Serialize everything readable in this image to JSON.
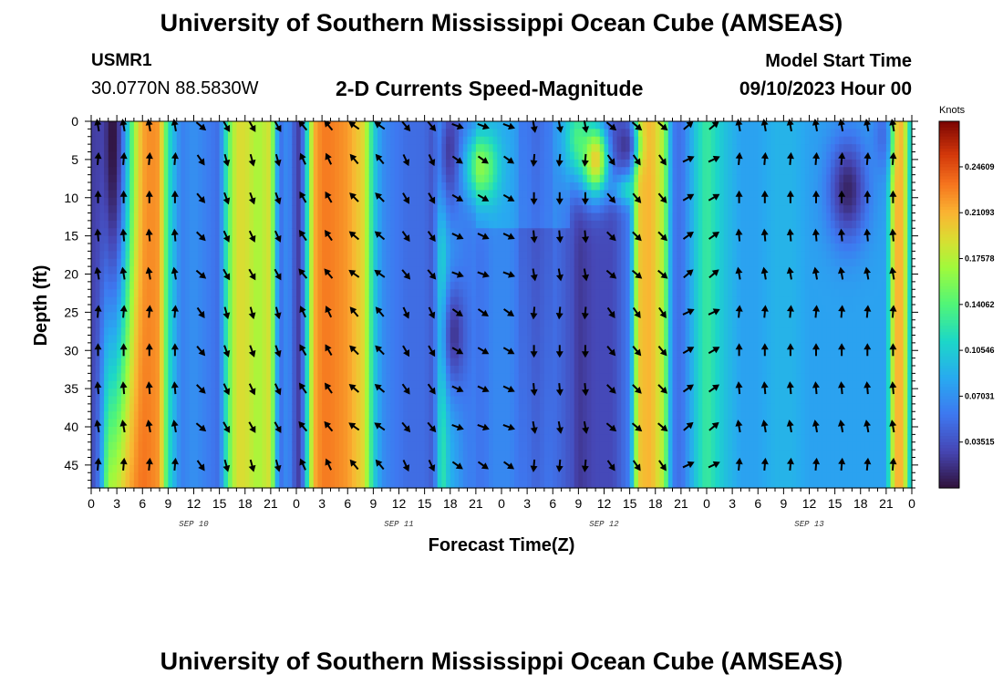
{
  "page": {
    "title": "University of Southern Mississippi Ocean Cube (AMSEAS)",
    "title_repeat": "University of Southern Mississippi Ocean Cube (AMSEAS)",
    "station_id": "USMR1",
    "station_coords": "30.0770N  88.5830W",
    "subtitle": "2-D Currents Speed-Magnitude",
    "model_start_label": "Model Start Time",
    "model_start_value": "09/10/2023 Hour 00"
  },
  "chart_data": {
    "type": "heatmap",
    "title": "2-D Currents Speed-Magnitude",
    "xlabel": "Forecast Time(Z)",
    "ylabel": "Depth (ft)",
    "x_ticks": [
      "0",
      "3",
      "6",
      "9",
      "12",
      "15",
      "18",
      "21",
      "0",
      "3",
      "6",
      "9",
      "12",
      "15",
      "18",
      "21",
      "0",
      "3",
      "6",
      "9",
      "12",
      "15",
      "18",
      "21",
      "0",
      "3",
      "6",
      "9",
      "12",
      "15",
      "18",
      "21",
      "0"
    ],
    "day_labels": [
      "SEP 10",
      "SEP 11",
      "SEP 12",
      "SEP 13"
    ],
    "xlim_hours": [
      0,
      96
    ],
    "y_ticks": [
      "0",
      "5",
      "10",
      "15",
      "20",
      "25",
      "30",
      "35",
      "40",
      "45"
    ],
    "ylim_ft": [
      0,
      48
    ],
    "colorbar": {
      "unit": "Knots",
      "ticks": [
        "0.24609",
        "0.21093",
        "0.17578",
        "0.14062",
        "0.10546",
        "0.07031",
        "0.03515"
      ],
      "range": [
        0,
        0.281
      ]
    },
    "speed_profile_hours": [
      0,
      1,
      2,
      4,
      6,
      8,
      9,
      10.5,
      12,
      13.5,
      15,
      16,
      17,
      18,
      19.5,
      21,
      22,
      23,
      24,
      24.5,
      26,
      27,
      28,
      30,
      32,
      33,
      34,
      35,
      37,
      39,
      40,
      41,
      42,
      44,
      46,
      47,
      48,
      49,
      50,
      51,
      52,
      53.5,
      55,
      56,
      57,
      59,
      61,
      63,
      64,
      65,
      65.5,
      67,
      68,
      69,
      70,
      71,
      72,
      74,
      76,
      78,
      80,
      82,
      84,
      86,
      88,
      90,
      92,
      93,
      94,
      95,
      96
    ],
    "speed_profile_knots": [
      0.03,
      0.07,
      0.22,
      0.24,
      0.24,
      0.22,
      0.12,
      0.06,
      0.07,
      0.06,
      0.05,
      0.14,
      0.19,
      0.19,
      0.17,
      0.19,
      0.05,
      0.07,
      0.03,
      0.02,
      0.21,
      0.23,
      0.23,
      0.22,
      0.19,
      0.11,
      0.07,
      0.06,
      0.05,
      0.05,
      0.04,
      0.13,
      0.09,
      0.06,
      0.06,
      0.07,
      0.07,
      0.07,
      0.06,
      0.06,
      0.05,
      0.06,
      0.05,
      0.04,
      0.02,
      0.03,
      0.03,
      0.06,
      0.2,
      0.21,
      0.21,
      0.17,
      0.06,
      0.05,
      0.08,
      0.11,
      0.13,
      0.1,
      0.08,
      0.08,
      0.09,
      0.09,
      0.08,
      0.08,
      0.08,
      0.08,
      0.08,
      0.08,
      0.21,
      0.21,
      0.08
    ],
    "anomalies": [
      {
        "center_hours": 2.5,
        "center_ft": 2,
        "hours_radius": 3,
        "ft_radius": 48,
        "knots": 0.0,
        "kind": "min"
      },
      {
        "center_hours": 42,
        "center_ft": 4,
        "hours_radius": 2.2,
        "ft_radius": 12,
        "knots": 0.02,
        "kind": "min"
      },
      {
        "center_hours": 42.5,
        "center_ft": 28,
        "hours_radius": 1.8,
        "ft_radius": 10,
        "knots": 0.02,
        "kind": "min"
      },
      {
        "center_hours": 45.5,
        "center_ft": 6,
        "hours_radius": 2.5,
        "ft_radius": 6,
        "knots": 0.09,
        "kind": "add"
      },
      {
        "center_hours": 56.8,
        "center_ft": 2,
        "hours_radius": 2.2,
        "ft_radius": 8,
        "knots": 0.13,
        "kind": "max"
      },
      {
        "center_hours": 59.0,
        "center_ft": 5,
        "hours_radius": 2,
        "ft_radius": 6,
        "knots": 0.2,
        "kind": "max"
      },
      {
        "center_hours": 62.5,
        "center_ft": 3,
        "hours_radius": 1.8,
        "ft_radius": 4,
        "knots": 0.02,
        "kind": "min"
      },
      {
        "center_hours": 65.0,
        "center_ft": 2,
        "hours_radius": 1.5,
        "ft_radius": 8,
        "knots": 0.12,
        "kind": "max"
      },
      {
        "center_hours": 63.5,
        "center_ft": 9,
        "hours_radius": 3,
        "ft_radius": 2.5,
        "knots": 0.12,
        "kind": "max"
      },
      {
        "center_hours": 88.5,
        "center_ft": 9,
        "hours_radius": 3,
        "ft_radius": 9,
        "knots": 0.01,
        "kind": "min"
      },
      {
        "center_hours": 92.5,
        "center_ft": 2,
        "hours_radius": 1.4,
        "ft_radius": 6,
        "knots": 0.05,
        "kind": "min"
      },
      {
        "center_hours": 95.0,
        "center_ft": 3,
        "hours_radius": 1,
        "ft_radius": 6,
        "knots": 0.12,
        "kind": "max"
      }
    ],
    "arrow_depths_ft": [
      0,
      5,
      10,
      15,
      20,
      25,
      30,
      35,
      40,
      45
    ],
    "arrow_start_hours": 0.2,
    "arrow_step_hours": 1.2,
    "arrow_direction_segments": [
      {
        "from_hours": 0,
        "to_hours": 10.5,
        "dir_deg": 0
      },
      {
        "from_hours": 10.5,
        "to_hours": 14,
        "dir_deg": 140
      },
      {
        "from_hours": 14,
        "to_hours": 22.5,
        "dir_deg": 160
      },
      {
        "from_hours": 22.5,
        "to_hours": 24.5,
        "dir_deg": 180
      },
      {
        "from_hours": 24.5,
        "to_hours": 28.5,
        "dir_deg": 330
      },
      {
        "from_hours": 28.5,
        "to_hours": 35,
        "dir_deg": 315
      },
      {
        "from_hours": 35,
        "to_hours": 42,
        "dir_deg": 150
      },
      {
        "from_hours": 42,
        "to_hours": 51,
        "dir_deg": 120
      },
      {
        "from_hours": 51,
        "to_hours": 60,
        "dir_deg": 180
      },
      {
        "from_hours": 60,
        "to_hours": 67,
        "dir_deg": 140
      },
      {
        "from_hours": 67,
        "to_hours": 74,
        "dir_deg": 60
      },
      {
        "from_hours": 74,
        "to_hours": 94,
        "dir_deg": 0
      },
      {
        "from_hours": 94,
        "to_hours": 96,
        "dir_deg": 150
      }
    ]
  },
  "colors": {
    "frame": "#000000",
    "arrow": "#000000",
    "background": "#ffffff"
  }
}
